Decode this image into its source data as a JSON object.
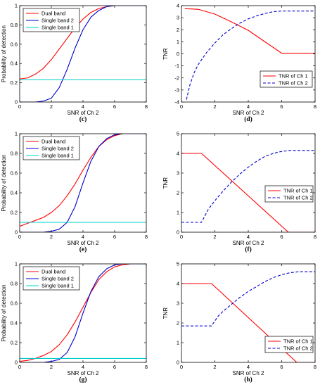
{
  "chart_data": [
    {
      "panel": "(c)",
      "type": "line",
      "xlabel": "SNR of Ch 2",
      "ylabel": "Probability of detection",
      "xlim": [
        0,
        8
      ],
      "ylim": [
        0,
        1
      ],
      "xticks": [
        "0",
        "2",
        "4",
        "6",
        "8"
      ],
      "yticks": [
        "0",
        "0.2",
        "0.4",
        "0.6",
        "0.8",
        "1"
      ],
      "legend": "top-left",
      "series": [
        {
          "name": "Dual band",
          "color": "#ff0000",
          "style": "solid",
          "x": [
            0,
            0.5,
            1,
            1.5,
            2,
            2.5,
            3,
            3.5,
            4,
            4.5,
            5,
            5.5,
            6,
            6.5,
            7,
            7.5,
            8
          ],
          "y": [
            0.24,
            0.25,
            0.29,
            0.35,
            0.44,
            0.55,
            0.66,
            0.77,
            0.86,
            0.93,
            0.97,
            0.99,
            1,
            1,
            1,
            1,
            1
          ]
        },
        {
          "name": "Single band 2",
          "color": "#0000cc",
          "style": "solid",
          "x": [
            0,
            0.5,
            1,
            1.5,
            2,
            2.5,
            3,
            3.5,
            4,
            4.5,
            5,
            5.5,
            6,
            6.5,
            7,
            7.5,
            8
          ],
          "y": [
            0,
            0,
            0,
            0.01,
            0.04,
            0.15,
            0.34,
            0.56,
            0.75,
            0.88,
            0.95,
            0.99,
            1,
            1,
            1,
            1,
            1
          ]
        },
        {
          "name": "Single band 1",
          "color": "#00cccc",
          "style": "solid",
          "x": [
            0,
            8
          ],
          "y": [
            0.23,
            0.23
          ]
        }
      ]
    },
    {
      "panel": "(d)",
      "type": "line",
      "xlabel": "SNR of Ch 2",
      "ylabel": "TNR",
      "xlim": [
        0,
        8
      ],
      "ylim": [
        -4,
        4
      ],
      "xticks": [
        "0",
        "2",
        "4",
        "6",
        "8"
      ],
      "yticks": [
        "-4",
        "-3",
        "-2",
        "-1",
        "0",
        "1",
        "2",
        "3",
        "4"
      ],
      "legend": "bottom-right",
      "series": [
        {
          "name": "TNR of Ch 1",
          "color": "#ff0000",
          "style": "solid",
          "x": [
            0.2,
            1,
            2,
            3,
            4,
            5,
            6,
            8
          ],
          "y": [
            3.75,
            3.7,
            3.3,
            2.65,
            1.95,
            1.0,
            0.05,
            0.05
          ]
        },
        {
          "name": "TNR of Ch 2",
          "color": "#0000cc",
          "style": "dashed",
          "x": [
            0.3,
            0.5,
            0.75,
            1,
            1.5,
            2,
            2.5,
            3,
            3.5,
            4,
            4.5,
            5,
            5.5,
            6,
            8
          ],
          "y": [
            -3.8,
            -2.6,
            -1.6,
            -0.9,
            0.1,
            0.9,
            1.6,
            2.1,
            2.55,
            2.9,
            3.15,
            3.35,
            3.5,
            3.55,
            3.55
          ]
        }
      ]
    },
    {
      "panel": "(e)",
      "type": "line",
      "xlabel": "SNR of Ch 2",
      "ylabel": "Probability of detection",
      "xlim": [
        0,
        8
      ],
      "ylim": [
        0,
        1
      ],
      "xticks": [
        "0",
        "2",
        "4",
        "6",
        "8"
      ],
      "yticks": [
        "0",
        "0.2",
        "0.4",
        "0.6",
        "0.8",
        "1"
      ],
      "legend": "top-left",
      "series": [
        {
          "name": "Dual band",
          "color": "#ff0000",
          "style": "solid",
          "x": [
            0,
            0.5,
            1,
            1.5,
            2,
            2.5,
            3,
            3.5,
            4,
            4.5,
            5,
            5.5,
            6,
            6.5,
            7,
            7.5,
            8
          ],
          "y": [
            0.06,
            0.09,
            0.12,
            0.15,
            0.2,
            0.27,
            0.37,
            0.49,
            0.63,
            0.76,
            0.87,
            0.94,
            0.98,
            1,
            1,
            1,
            1
          ]
        },
        {
          "name": "Single band 2",
          "color": "#0000cc",
          "style": "solid",
          "x": [
            0,
            0.5,
            1,
            1.5,
            2,
            2.5,
            3,
            3.5,
            4,
            4.5,
            5,
            5.5,
            6,
            6.5,
            7,
            7.5,
            8
          ],
          "y": [
            0,
            0,
            0,
            0,
            0.01,
            0.03,
            0.1,
            0.26,
            0.5,
            0.72,
            0.87,
            0.95,
            0.99,
            1,
            1,
            1,
            1
          ]
        },
        {
          "name": "Single band 1",
          "color": "#00cccc",
          "style": "solid",
          "x": [
            0,
            8
          ],
          "y": [
            0.1,
            0.1
          ]
        }
      ]
    },
    {
      "panel": "(f)",
      "type": "line",
      "xlabel": "SNR of Ch 2",
      "ylabel": "TNR",
      "xlim": [
        0,
        8
      ],
      "ylim": [
        0,
        5
      ],
      "xticks": [
        "0",
        "2",
        "4",
        "6",
        "8"
      ],
      "yticks": [
        "0",
        "1",
        "2",
        "3",
        "4",
        "5"
      ],
      "legend": "right",
      "series": [
        {
          "name": "TNR of Ch 1",
          "color": "#ff0000",
          "style": "solid",
          "x": [
            0,
            1.2,
            6.4,
            8
          ],
          "y": [
            4.0,
            4.0,
            0.0,
            0.0
          ]
        },
        {
          "name": "TNR of Ch 2",
          "color": "#0000cc",
          "style": "dashed",
          "x": [
            0,
            1.2,
            1.6,
            2,
            2.5,
            3,
            3.5,
            4,
            4.5,
            5,
            5.5,
            6,
            6.5,
            7,
            8
          ],
          "y": [
            0.5,
            0.5,
            1.15,
            1.6,
            2.1,
            2.55,
            2.95,
            3.3,
            3.6,
            3.85,
            4.0,
            4.1,
            4.15,
            4.15,
            4.15
          ]
        }
      ]
    },
    {
      "panel": "(g)",
      "type": "line",
      "xlabel": "SNR of Ch 2",
      "ylabel": "Probability of detection",
      "xlim": [
        0,
        8
      ],
      "ylim": [
        0,
        1
      ],
      "xticks": [
        "0",
        "2",
        "4",
        "6",
        "8"
      ],
      "yticks": [
        "0",
        "0.2",
        "0.4",
        "0.6",
        "0.8",
        "1"
      ],
      "legend": "top-left",
      "series": [
        {
          "name": "Dual band",
          "color": "#ff0000",
          "style": "solid",
          "x": [
            0,
            0.5,
            1,
            1.5,
            2,
            2.5,
            3,
            3.5,
            4,
            4.5,
            5,
            5.5,
            6,
            6.5,
            7,
            7.5,
            8
          ],
          "y": [
            0.01,
            0.02,
            0.04,
            0.07,
            0.11,
            0.18,
            0.28,
            0.41,
            0.56,
            0.71,
            0.84,
            0.92,
            0.97,
            0.99,
            1,
            1,
            1
          ]
        },
        {
          "name": "Single band 2",
          "color": "#0000cc",
          "style": "solid",
          "x": [
            0,
            0.5,
            1,
            1.5,
            2,
            2.5,
            3,
            3.5,
            4,
            4.5,
            5,
            5.5,
            6,
            6.5,
            7,
            7.5,
            8
          ],
          "y": [
            0,
            0,
            0,
            0,
            0.01,
            0.03,
            0.1,
            0.26,
            0.5,
            0.72,
            0.87,
            0.95,
            0.99,
            1,
            1,
            1,
            1
          ]
        },
        {
          "name": "Single band 1",
          "color": "#00cccc",
          "style": "solid",
          "x": [
            0,
            8
          ],
          "y": [
            0.04,
            0.04
          ]
        }
      ]
    },
    {
      "panel": "(h)",
      "type": "line",
      "xlabel": "SNR of Ch 2",
      "ylabel": "TNR",
      "xlim": [
        0,
        8
      ],
      "ylim": [
        0,
        5
      ],
      "xticks": [
        "0",
        "2",
        "4",
        "6",
        "8"
      ],
      "yticks": [
        "0",
        "1",
        "2",
        "3",
        "4",
        "5"
      ],
      "legend": "bottom-right",
      "series": [
        {
          "name": "TNR of Ch 1",
          "color": "#ff0000",
          "style": "solid",
          "x": [
            0,
            1.8,
            6.9,
            8
          ],
          "y": [
            4.0,
            4.0,
            0.0,
            0.0
          ]
        },
        {
          "name": "TNR of Ch 2",
          "color": "#0000cc",
          "style": "dashed",
          "x": [
            0,
            1.8,
            2.2,
            2.5,
            3,
            3.5,
            4,
            4.5,
            5,
            5.5,
            6,
            6.5,
            7,
            8
          ],
          "y": [
            1.85,
            1.85,
            2.35,
            2.6,
            2.95,
            3.3,
            3.6,
            3.85,
            4.1,
            4.3,
            4.45,
            4.55,
            4.6,
            4.6
          ]
        }
      ]
    }
  ]
}
